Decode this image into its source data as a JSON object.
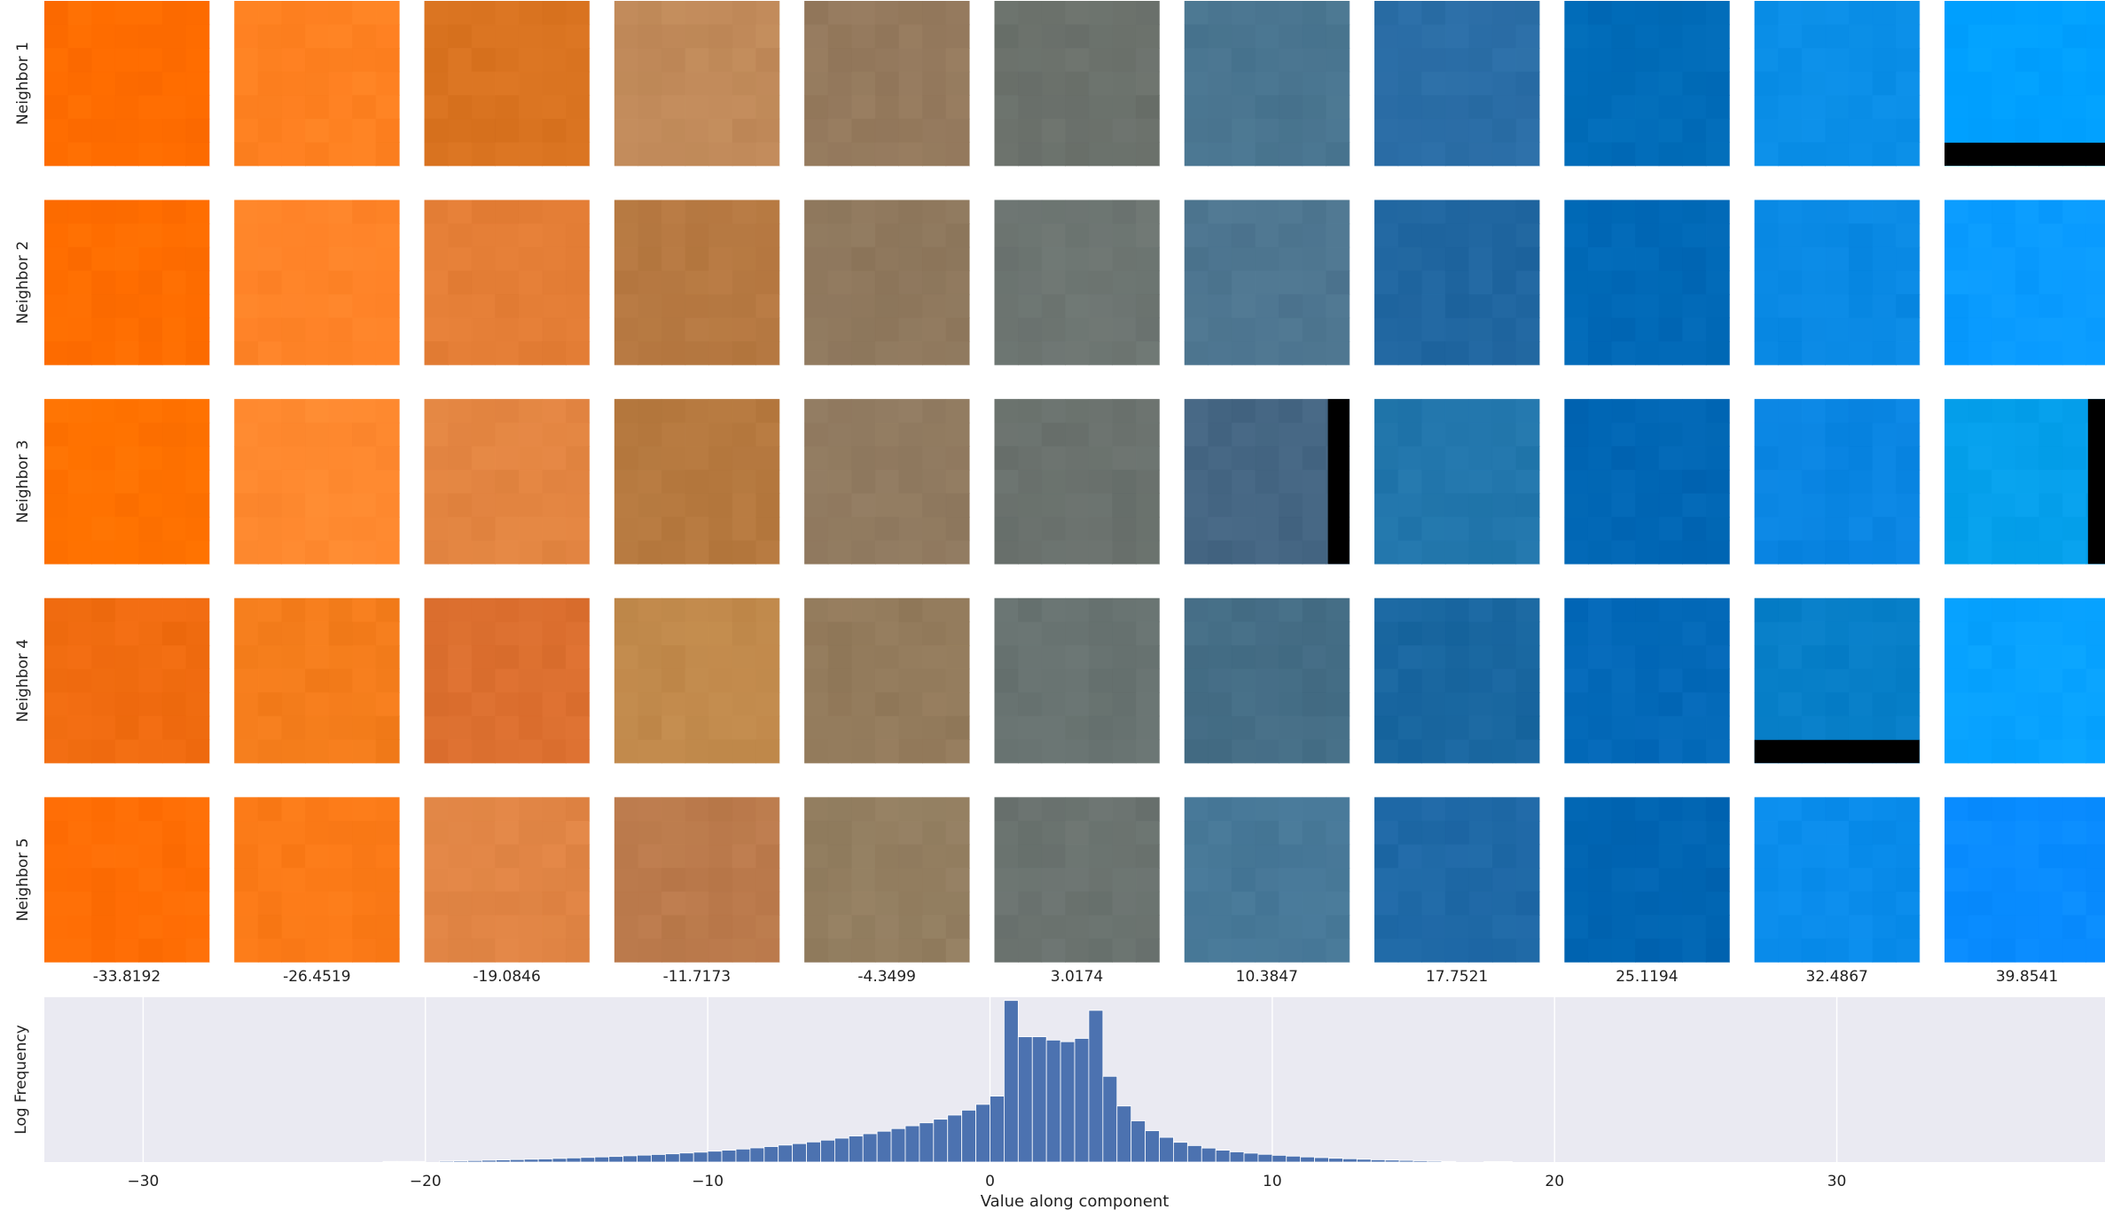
{
  "chart_data": [
    {
      "type": "image_grid",
      "row_labels": [
        "Neighbor 1",
        "Neighbor 2",
        "Neighbor 3",
        "Neighbor 4",
        "Neighbor 5"
      ],
      "column_values": [
        "-33.8192",
        "-26.4519",
        "-19.0846",
        "-11.7173",
        "-4.3499",
        "3.0174",
        "10.3847",
        "17.7521",
        "25.1194",
        "32.4867",
        "39.8541"
      ],
      "cell_colors": [
        [
          "#ff6d00",
          "#ff8222",
          "#d97321",
          "#c08a5a",
          "#957a5e",
          "#6b716c",
          "#4a7590",
          "#2b6ea6",
          "#006cb8",
          "#0b8ee7",
          "#00a0ff"
        ],
        [
          "#ff6e00",
          "#ff8428",
          "#e47e37",
          "#b67942",
          "#8f785d",
          "#6d7572",
          "#4e7690",
          "#2166a0",
          "#0069b7",
          "#0a89e4",
          "#0a9bff"
        ],
        [
          "#ff7200",
          "#ff8930",
          "#e38542",
          "#b5793f",
          "#917b61",
          "#6a726e",
          "#456683",
          "#2276ac",
          "#0066b4",
          "#0a85e2",
          "#06a0ec"
        ],
        [
          "#f06c10",
          "#f47d1c",
          "#dc7030",
          "#c18a4c",
          "#937b5c",
          "#687371",
          "#456e86",
          "#1a67a0",
          "#0469b8",
          "#087fc8",
          "#08a2ff"
        ],
        [
          "#ff6e05",
          "#fb7a18",
          "#e18545",
          "#bb7a4c",
          "#937e61",
          "#6b7370",
          "#477898",
          "#1f69a6",
          "#0065b2",
          "#0a8ceb",
          "#0a8cff"
        ]
      ],
      "black_bars": [
        {
          "row": 0,
          "col": 10,
          "edge": "bottom",
          "fraction": 0.14
        },
        {
          "row": 2,
          "col": 6,
          "edge": "right",
          "fraction": 0.13
        },
        {
          "row": 2,
          "col": 10,
          "edge": "right",
          "fraction": 0.13
        },
        {
          "row": 3,
          "col": 9,
          "edge": "bottom",
          "fraction": 0.14
        }
      ]
    },
    {
      "type": "bar",
      "title": "",
      "xlabel": "Value along component",
      "ylabel": "Log Frequency",
      "xlim": [
        -33.5,
        39.5
      ],
      "ylim": [
        0,
        1.0
      ],
      "xticks": [
        -30,
        -20,
        -10,
        0,
        10,
        20,
        30
      ],
      "xtick_labels": [
        "−30",
        "−20",
        "−10",
        "0",
        "10",
        "20",
        "30"
      ],
      "grid": true,
      "bar_color": "#4c72b0",
      "bin_width": 0.5,
      "bins": [
        {
          "x": -21.25,
          "h": 0.004
        },
        {
          "x": -20.75,
          "h": 0.004
        },
        {
          "x": -20.25,
          "h": 0.004
        },
        {
          "x": -19.25,
          "h": 0.006
        },
        {
          "x": -18.75,
          "h": 0.007
        },
        {
          "x": -18.25,
          "h": 0.009
        },
        {
          "x": -17.75,
          "h": 0.011
        },
        {
          "x": -17.25,
          "h": 0.013
        },
        {
          "x": -16.75,
          "h": 0.015
        },
        {
          "x": -16.25,
          "h": 0.017
        },
        {
          "x": -15.75,
          "h": 0.019
        },
        {
          "x": -15.25,
          "h": 0.022
        },
        {
          "x": -14.75,
          "h": 0.025
        },
        {
          "x": -14.25,
          "h": 0.028
        },
        {
          "x": -13.75,
          "h": 0.031
        },
        {
          "x": -13.25,
          "h": 0.034
        },
        {
          "x": -12.75,
          "h": 0.038
        },
        {
          "x": -12.25,
          "h": 0.042
        },
        {
          "x": -11.75,
          "h": 0.046
        },
        {
          "x": -11.25,
          "h": 0.05
        },
        {
          "x": -10.75,
          "h": 0.055
        },
        {
          "x": -10.25,
          "h": 0.06
        },
        {
          "x": -9.75,
          "h": 0.066
        },
        {
          "x": -9.25,
          "h": 0.072
        },
        {
          "x": -8.75,
          "h": 0.079
        },
        {
          "x": -8.25,
          "h": 0.086
        },
        {
          "x": -7.75,
          "h": 0.094
        },
        {
          "x": -7.25,
          "h": 0.103
        },
        {
          "x": -6.75,
          "h": 0.112
        },
        {
          "x": -6.25,
          "h": 0.122
        },
        {
          "x": -5.75,
          "h": 0.133
        },
        {
          "x": -5.25,
          "h": 0.145
        },
        {
          "x": -4.75,
          "h": 0.158
        },
        {
          "x": -4.25,
          "h": 0.172
        },
        {
          "x": -3.75,
          "h": 0.187
        },
        {
          "x": -3.25,
          "h": 0.203
        },
        {
          "x": -2.75,
          "h": 0.22
        },
        {
          "x": -2.25,
          "h": 0.238
        },
        {
          "x": -1.75,
          "h": 0.26
        },
        {
          "x": -1.25,
          "h": 0.285
        },
        {
          "x": -0.75,
          "h": 0.315
        },
        {
          "x": -0.25,
          "h": 0.35
        },
        {
          "x": 0.25,
          "h": 0.4
        },
        {
          "x": 0.75,
          "h": 0.98
        },
        {
          "x": 1.25,
          "h": 0.76
        },
        {
          "x": 1.75,
          "h": 0.76
        },
        {
          "x": 2.25,
          "h": 0.74
        },
        {
          "x": 2.75,
          "h": 0.73
        },
        {
          "x": 3.25,
          "h": 0.75
        },
        {
          "x": 3.75,
          "h": 0.92
        },
        {
          "x": 4.25,
          "h": 0.52
        },
        {
          "x": 4.75,
          "h": 0.34
        },
        {
          "x": 5.25,
          "h": 0.25
        },
        {
          "x": 5.75,
          "h": 0.19
        },
        {
          "x": 6.25,
          "h": 0.15
        },
        {
          "x": 6.75,
          "h": 0.12
        },
        {
          "x": 7.25,
          "h": 0.1
        },
        {
          "x": 7.75,
          "h": 0.085
        },
        {
          "x": 8.25,
          "h": 0.072
        },
        {
          "x": 8.75,
          "h": 0.062
        },
        {
          "x": 9.25,
          "h": 0.054
        },
        {
          "x": 9.75,
          "h": 0.047
        },
        {
          "x": 10.25,
          "h": 0.041
        },
        {
          "x": 10.75,
          "h": 0.036
        },
        {
          "x": 11.25,
          "h": 0.031
        },
        {
          "x": 11.75,
          "h": 0.027
        },
        {
          "x": 12.25,
          "h": 0.023
        },
        {
          "x": 12.75,
          "h": 0.02
        },
        {
          "x": 13.25,
          "h": 0.017
        },
        {
          "x": 13.75,
          "h": 0.014
        },
        {
          "x": 14.25,
          "h": 0.012
        },
        {
          "x": 14.75,
          "h": 0.01
        },
        {
          "x": 15.25,
          "h": 0.008
        },
        {
          "x": 15.75,
          "h": 0.006
        },
        {
          "x": 16.25,
          "h": 0.004
        },
        {
          "x": 17.75,
          "h": 0.003
        },
        {
          "x": 18.25,
          "h": 0.003
        }
      ]
    }
  ]
}
